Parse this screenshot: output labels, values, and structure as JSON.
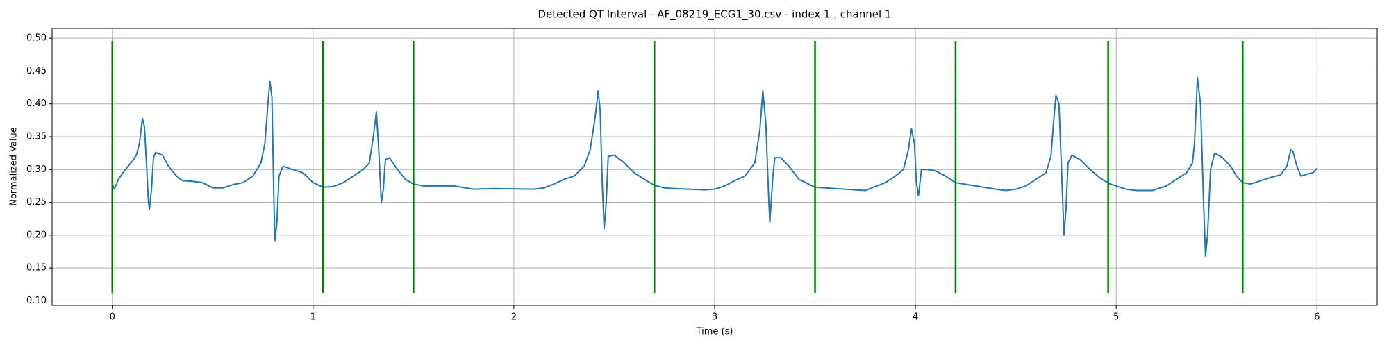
{
  "chart_data": {
    "type": "line",
    "title": "Detected QT Interval - AF_08219_ECG1_30.csv - index 1 , channel 1",
    "x_label": "Time (s)",
    "y_label": "Normalized Value",
    "x": [
      0,
      0.01,
      0.03,
      0.06,
      0.1,
      0.12,
      0.135,
      0.15,
      0.16,
      0.17,
      0.18,
      0.185,
      0.195,
      0.205,
      0.215,
      0.25,
      0.28,
      0.32,
      0.35,
      0.4,
      0.45,
      0.5,
      0.55,
      0.6,
      0.65,
      0.7,
      0.74,
      0.76,
      0.775,
      0.785,
      0.795,
      0.805,
      0.81,
      0.82,
      0.83,
      0.85,
      0.9,
      0.95,
      1.0,
      1.05,
      1.1,
      1.15,
      1.2,
      1.25,
      1.28,
      1.3,
      1.315,
      1.325,
      1.34,
      1.35,
      1.36,
      1.38,
      1.42,
      1.46,
      1.5,
      1.55,
      1.7,
      1.8,
      1.9,
      2.1,
      2.15,
      2.2,
      2.25,
      2.3,
      2.35,
      2.38,
      2.405,
      2.42,
      2.43,
      2.44,
      2.45,
      2.46,
      2.47,
      2.5,
      2.55,
      2.6,
      2.65,
      2.7,
      2.75,
      2.8,
      2.95,
      3.0,
      3.05,
      3.1,
      3.15,
      3.2,
      3.225,
      3.24,
      3.255,
      3.27,
      3.275,
      3.29,
      3.3,
      3.33,
      3.37,
      3.42,
      3.5,
      3.6,
      3.75,
      3.8,
      3.85,
      3.9,
      3.94,
      3.965,
      3.98,
      3.995,
      4.005,
      4.015,
      4.03,
      4.06,
      4.1,
      4.15,
      4.2,
      4.3,
      4.4,
      4.45,
      4.5,
      4.55,
      4.6,
      4.65,
      4.675,
      4.69,
      4.7,
      4.715,
      4.73,
      4.74,
      4.75,
      4.76,
      4.78,
      4.82,
      4.87,
      4.92,
      4.97,
      5.05,
      5.1,
      5.18,
      5.2,
      5.25,
      5.3,
      5.35,
      5.38,
      5.39,
      5.405,
      5.42,
      5.435,
      5.445,
      5.455,
      5.47,
      5.49,
      5.53,
      5.57,
      5.6,
      5.63,
      5.67,
      5.72,
      5.77,
      5.82,
      5.85,
      5.87,
      5.88,
      5.9,
      5.92,
      5.95,
      5.98,
      6.0
    ],
    "series": [
      {
        "color": "#1f77b4",
        "values": [
          0.278,
          0.27,
          0.285,
          0.298,
          0.313,
          0.322,
          0.34,
          0.378,
          0.365,
          0.31,
          0.25,
          0.24,
          0.27,
          0.318,
          0.326,
          0.322,
          0.305,
          0.29,
          0.283,
          0.282,
          0.28,
          0.272,
          0.272,
          0.277,
          0.28,
          0.29,
          0.31,
          0.34,
          0.4,
          0.435,
          0.41,
          0.25,
          0.192,
          0.22,
          0.29,
          0.305,
          0.3,
          0.295,
          0.28,
          0.273,
          0.274,
          0.28,
          0.29,
          0.3,
          0.31,
          0.35,
          0.388,
          0.34,
          0.25,
          0.27,
          0.315,
          0.318,
          0.3,
          0.285,
          0.278,
          0.275,
          0.275,
          0.27,
          0.271,
          0.27,
          0.272,
          0.278,
          0.285,
          0.29,
          0.305,
          0.33,
          0.38,
          0.42,
          0.39,
          0.28,
          0.21,
          0.25,
          0.32,
          0.322,
          0.31,
          0.295,
          0.285,
          0.276,
          0.272,
          0.271,
          0.269,
          0.27,
          0.275,
          0.283,
          0.29,
          0.31,
          0.36,
          0.42,
          0.37,
          0.25,
          0.22,
          0.29,
          0.318,
          0.318,
          0.305,
          0.285,
          0.273,
          0.271,
          0.268,
          0.274,
          0.28,
          0.29,
          0.3,
          0.33,
          0.362,
          0.34,
          0.28,
          0.26,
          0.3,
          0.3,
          0.298,
          0.29,
          0.28,
          0.275,
          0.27,
          0.268,
          0.27,
          0.275,
          0.285,
          0.295,
          0.32,
          0.38,
          0.413,
          0.4,
          0.28,
          0.2,
          0.24,
          0.31,
          0.322,
          0.315,
          0.3,
          0.287,
          0.278,
          0.27,
          0.268,
          0.268,
          0.27,
          0.275,
          0.285,
          0.295,
          0.31,
          0.34,
          0.44,
          0.4,
          0.25,
          0.168,
          0.2,
          0.3,
          0.325,
          0.318,
          0.305,
          0.29,
          0.28,
          0.278,
          0.283,
          0.288,
          0.292,
          0.305,
          0.33,
          0.328,
          0.305,
          0.29,
          0.293,
          0.295,
          0.302
        ]
      }
    ],
    "vlines": {
      "x": [
        0,
        1.05,
        1.5,
        2.7,
        3.5,
        4.2,
        4.96,
        5.63
      ],
      "ymin": 0.112,
      "ymax": 0.496,
      "color": "green"
    },
    "xlim": [
      -0.3,
      6.3
    ],
    "xticks": [
      0,
      1,
      2,
      3,
      4,
      5,
      6
    ],
    "ylim": [
      0.093,
      0.515
    ],
    "yticks": [
      {
        "value": 0.1,
        "label": "0.10"
      },
      0.15,
      {
        "value": 0.2,
        "label": "0.20"
      },
      0.25,
      {
        "value": 0.3,
        "label": "0.30"
      },
      0.35,
      {
        "value": 0.4,
        "label": "0.40"
      },
      0.45,
      {
        "value": 0.5,
        "label": "0.50"
      }
    ],
    "grid": true
  }
}
